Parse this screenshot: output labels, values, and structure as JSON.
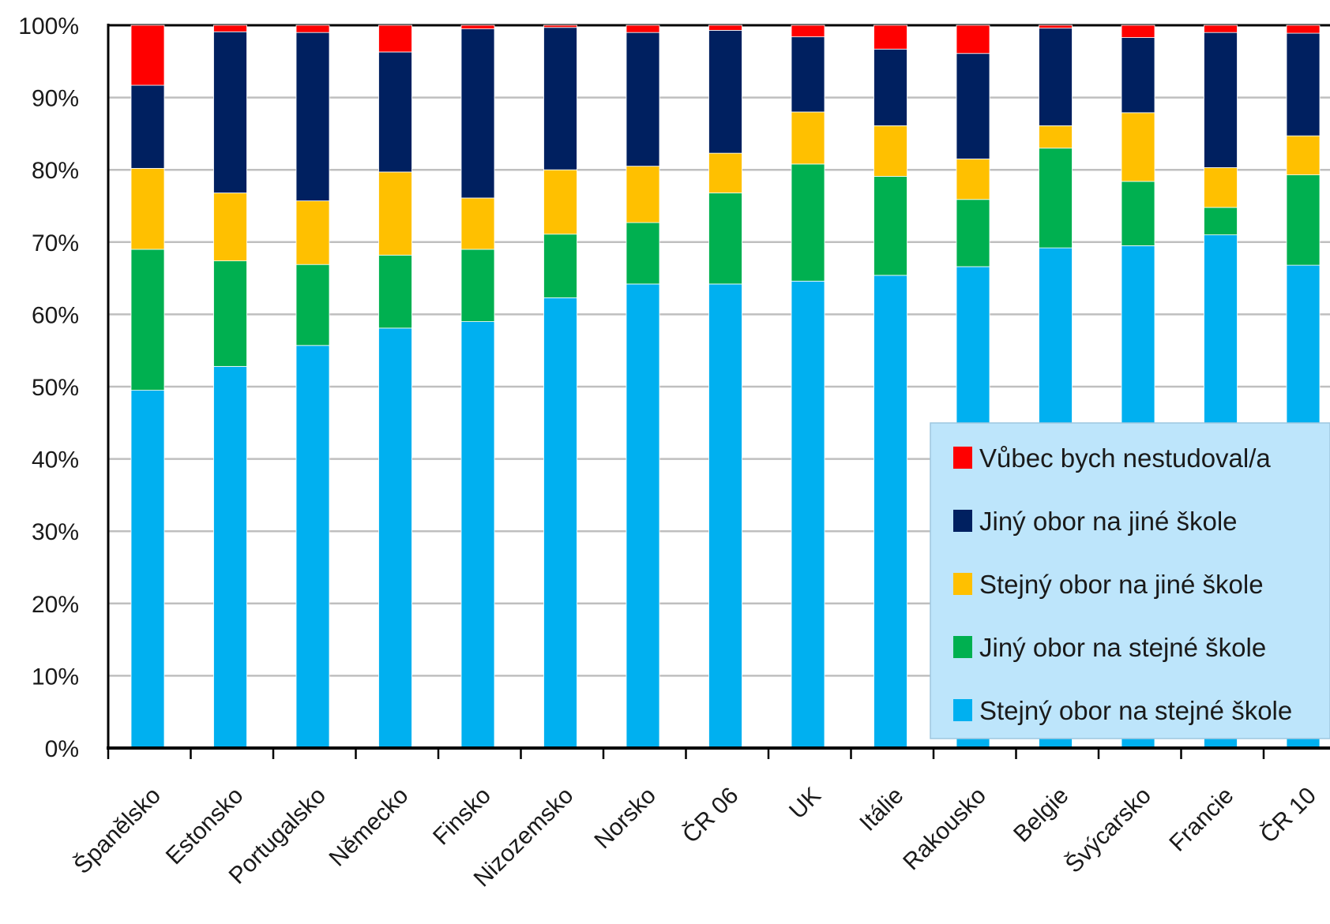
{
  "chart_data": {
    "type": "bar",
    "stacked": true,
    "categories": [
      "Španělsko",
      "Estonsko",
      "Portugalsko",
      "Německo",
      "Finsko",
      "Nizozemsko",
      "Norsko",
      "ČR 06",
      "UK",
      "Itálie",
      "Rakousko",
      "Belgie",
      "Švýcarsko",
      "Francie",
      "ČR 10"
    ],
    "series": [
      {
        "name": "Stejný obor na stejné škole",
        "color": "#00b0f0",
        "values": [
          49.5,
          52.8,
          55.7,
          58.1,
          59.0,
          62.3,
          64.2,
          64.2,
          64.6,
          65.4,
          66.6,
          69.2,
          69.5,
          71.0,
          66.8
        ]
      },
      {
        "name": "Jiný obor na stejné škole",
        "color": "#00b050",
        "values": [
          19.5,
          14.6,
          11.2,
          10.1,
          10.0,
          8.8,
          8.5,
          12.6,
          16.2,
          13.7,
          9.3,
          13.8,
          8.9,
          3.8,
          12.5
        ]
      },
      {
        "name": "Stejný obor na jiné škole",
        "color": "#ffc000",
        "values": [
          11.2,
          9.4,
          8.8,
          11.5,
          7.1,
          8.9,
          7.8,
          5.5,
          7.2,
          7.0,
          5.6,
          3.1,
          9.5,
          5.5,
          5.4
        ]
      },
      {
        "name": "Jiný obor na jiné škole",
        "color": "#002060",
        "values": [
          11.5,
          22.3,
          23.3,
          16.6,
          23.4,
          19.7,
          18.5,
          17.0,
          10.4,
          10.6,
          14.6,
          13.5,
          10.4,
          18.7,
          14.2
        ]
      },
      {
        "name": "Vůbec bych nestudoval/a",
        "color": "#ff0000",
        "values": [
          8.3,
          0.9,
          1.0,
          3.7,
          0.5,
          0.3,
          1.0,
          0.7,
          1.6,
          3.3,
          3.9,
          0.4,
          1.7,
          1.0,
          1.1
        ]
      }
    ],
    "legend_order": [
      "Vůbec bych nestudoval/a",
      "Jiný obor na jiné škole",
      "Stejný obor na jiné škole",
      "Jiný obor na stejné škole",
      "Stejný obor na stejné škole"
    ],
    "y_ticks": [
      "0%",
      "10%",
      "20%",
      "30%",
      "40%",
      "50%",
      "60%",
      "70%",
      "80%",
      "90%",
      "100%"
    ],
    "ylim": [
      0,
      100
    ],
    "grid": true,
    "legend_position": "bottom-right",
    "title": "",
    "xlabel": "",
    "ylabel": ""
  }
}
